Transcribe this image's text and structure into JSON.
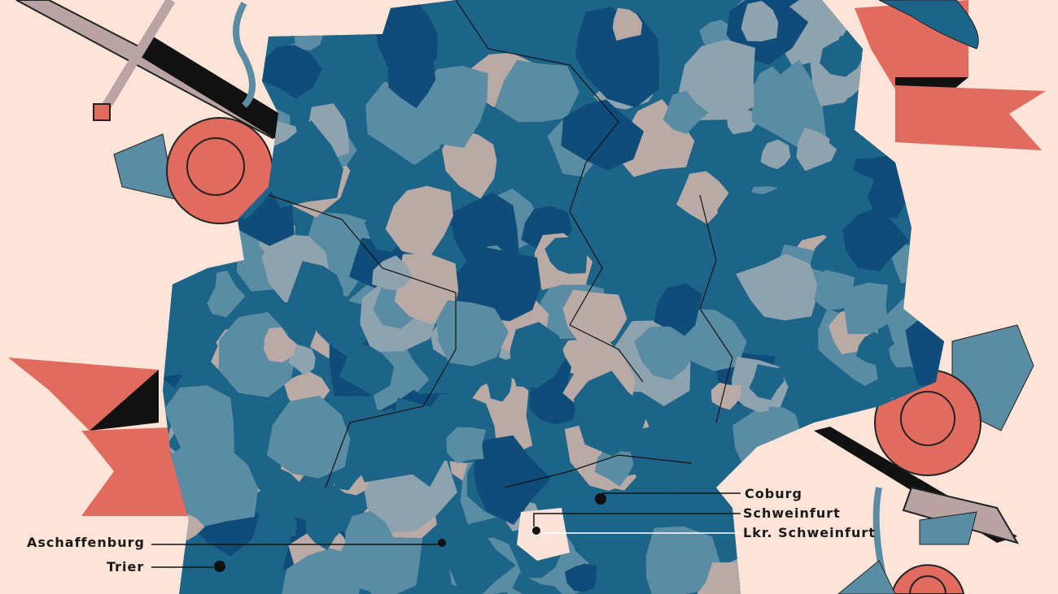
{
  "colors": {
    "background": "#fce4d8",
    "map_dark_blue": "#0f4c7a",
    "map_blue": "#1d6489",
    "map_teal": "#5a8da3",
    "map_grey_blue": "#8ea3ad",
    "map_taupe": "#b9aaa6",
    "highlight": "#fbe3d9",
    "ribbon": "#e06b5e",
    "sword_blade": "#b9a3a3"
  },
  "labels": {
    "coburg": "Coburg",
    "schweinfurt": "Schweinfurt",
    "lkr_schweinfurt": "Lkr. Schweinfurt",
    "aschaffenburg": "Aschaffenburg",
    "trier": "Trier"
  },
  "decorations": [
    "sword-icon",
    "rose-icon",
    "ribbon-icon",
    "leaf-icon"
  ]
}
